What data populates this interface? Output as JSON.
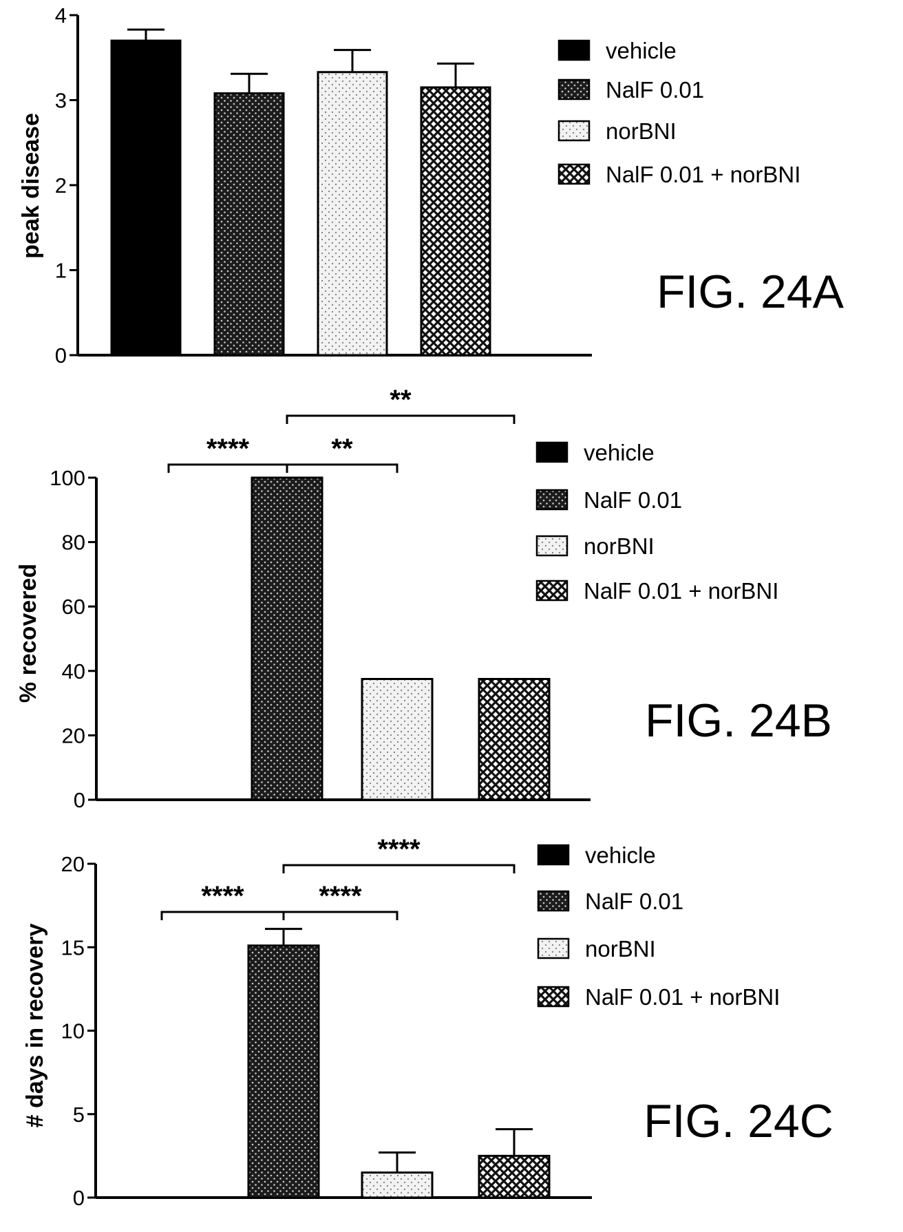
{
  "chart_data": [
    {
      "type": "bar",
      "figure_label": "FIG. 24A",
      "ylabel": "peak disease",
      "ylim": [
        0,
        4
      ],
      "yticks": [
        "0",
        "1",
        "2",
        "3",
        "4"
      ],
      "categories": [
        "vehicle",
        "NalF 0.01",
        "norBNI",
        "NalF 0.01 + norBNI"
      ],
      "values": [
        3.7,
        3.08,
        3.33,
        3.15
      ],
      "errors": [
        0.13,
        0.23,
        0.26,
        0.28
      ],
      "legend": [
        "vehicle",
        "NalF 0.01",
        "norBNI",
        "NalF 0.01 + norBNI"
      ],
      "significance": []
    },
    {
      "type": "bar",
      "figure_label": "FIG. 24B",
      "ylabel": "% recovered",
      "ylim": [
        0,
        100
      ],
      "yticks": [
        "0",
        "20",
        "40",
        "60",
        "80",
        "100"
      ],
      "categories": [
        "vehicle",
        "NalF 0.01",
        "norBNI",
        "NalF 0.01 + norBNI"
      ],
      "values": [
        0,
        100,
        37.5,
        37.5
      ],
      "errors": [
        0,
        0,
        0,
        0
      ],
      "legend": [
        "vehicle",
        "NalF 0.01",
        "norBNI",
        "NalF 0.01 + norBNI"
      ],
      "significance": [
        {
          "from": 1,
          "to": 3,
          "label": "**"
        },
        {
          "from": 0,
          "to": 2,
          "label": "****"
        },
        {
          "from": 1,
          "to": 2,
          "label": "**"
        }
      ]
    },
    {
      "type": "bar",
      "figure_label": "FIG. 24C",
      "ylabel": "# days in recovery",
      "ylim": [
        0,
        20
      ],
      "yticks": [
        "0",
        "5",
        "10",
        "15",
        "20"
      ],
      "categories": [
        "vehicle",
        "NalF 0.01",
        "norBNI",
        "NalF 0.01 + norBNI"
      ],
      "values": [
        0,
        15.1,
        1.5,
        2.5
      ],
      "errors": [
        0,
        1.0,
        1.2,
        1.6
      ],
      "legend": [
        "vehicle",
        "NalF 0.01",
        "norBNI",
        "NalF 0.01 + norBNI"
      ],
      "significance": [
        {
          "from": 1,
          "to": 3,
          "label": "****"
        },
        {
          "from": 0,
          "to": 2,
          "label": "****"
        },
        {
          "from": 1,
          "to": 2,
          "label": "****"
        }
      ]
    }
  ]
}
